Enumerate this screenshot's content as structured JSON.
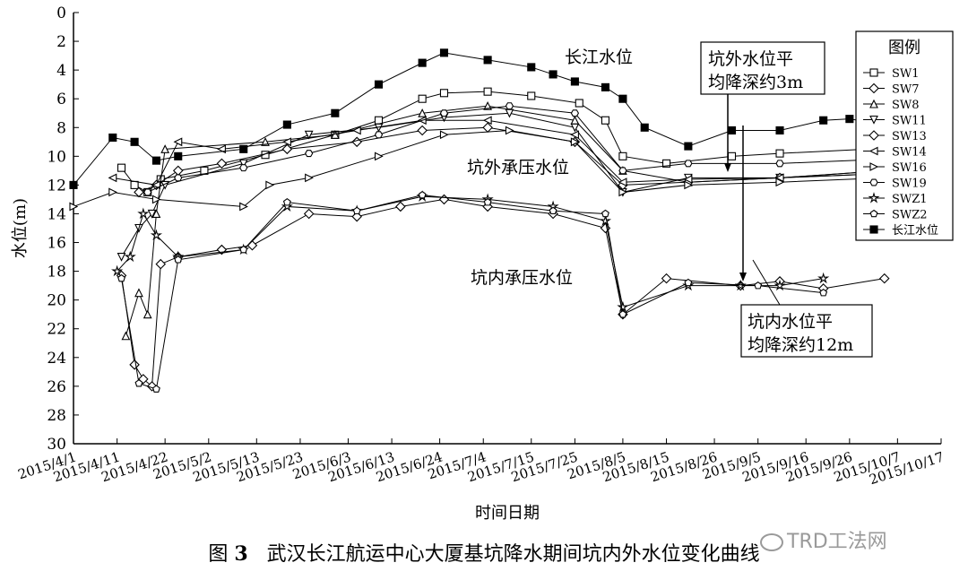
{
  "chart_data": {
    "type": "line",
    "ylabel": "水位(m)",
    "xlabel": "时间日期",
    "y_axis": {
      "min": 0,
      "max": 30,
      "inverted": true,
      "ticks": [
        0,
        2,
        4,
        6,
        8,
        10,
        12,
        14,
        16,
        18,
        20,
        22,
        24,
        26,
        28,
        30
      ]
    },
    "x_axis": {
      "min": "2015/4/1",
      "max": "2015/10/17",
      "tick_labels": [
        "2015/4/1",
        "2015/4/11",
        "2015/4/22",
        "2015/5/2",
        "2015/5/13",
        "2015/5/23",
        "2015/6/3",
        "2015/6/13",
        "2015/6/24",
        "2015/7/4",
        "2015/7/15",
        "2015/7/25",
        "2015/8/5",
        "2015/8/15",
        "2015/8/26",
        "2015/9/5",
        "2015/9/16",
        "2015/9/26",
        "2015/10/7",
        "2015/10/17"
      ]
    },
    "legend_title": "图例",
    "legend_position": "right",
    "annotations": [
      {
        "text": "长江水位"
      },
      {
        "text": "坑外承压水位"
      },
      {
        "text": "坑内承压水位"
      },
      {
        "text": "坑外水位平均降深约3m",
        "lines": [
          "坑外水位平",
          "均降深约3m"
        ]
      },
      {
        "text": "坑内水位平均降深约12m",
        "lines": [
          "坑内水位平",
          "均降深约12m"
        ]
      }
    ],
    "series": [
      {
        "name": "SW1",
        "marker": "square",
        "x": [
          "2015/4/12",
          "2015/4/15",
          "2015/4/18",
          "2015/4/21",
          "2015/5/1",
          "2015/5/15",
          "2015/5/31",
          "2015/6/10",
          "2015/6/20",
          "2015/6/25",
          "2015/7/5",
          "2015/7/15",
          "2015/7/26",
          "2015/8/1",
          "2015/8/5",
          "2015/8/15",
          "2015/8/30",
          "2015/9/10",
          "2015/9/30",
          "2015/10/4"
        ],
        "y": [
          10.8,
          12,
          12.5,
          11.6,
          11,
          9.9,
          8.5,
          7.5,
          6,
          5.6,
          5.5,
          5.8,
          6.3,
          7.5,
          10,
          10.5,
          10,
          9.8,
          9.5,
          9.3
        ]
      },
      {
        "name": "SW7",
        "marker": "diamond",
        "x": [
          "2015/4/12",
          "2015/4/15",
          "2015/4/17",
          "2015/4/19",
          "2015/4/21",
          "2015/4/25",
          "2015/5/5",
          "2015/5/12",
          "2015/5/25",
          "2015/6/5",
          "2015/6/15",
          "2015/6/25",
          "2015/7/5",
          "2015/7/20",
          "2015/8/1",
          "2015/8/5",
          "2015/8/15",
          "2015/9/1",
          "2015/9/10",
          "2015/9/20",
          "2015/10/4"
        ],
        "y": [
          18.3,
          24.5,
          25.5,
          26,
          17.5,
          17,
          16.5,
          16.2,
          14,
          14.2,
          13.5,
          13,
          13.5,
          14,
          15,
          21,
          18.5,
          19,
          18.7,
          19.2,
          18.5
        ]
      },
      {
        "name": "SW8",
        "marker": "triangle-up",
        "x": [
          "2015/4/13",
          "2015/4/16",
          "2015/4/18",
          "2015/4/20",
          "2015/4/22",
          "2015/5/15",
          "2015/5/31",
          "2015/6/20",
          "2015/7/5",
          "2015/7/25",
          "2015/8/5",
          "2015/8/20",
          "2015/9/10",
          "2015/10/4"
        ],
        "y": [
          22.5,
          19.5,
          21,
          14,
          9.5,
          9,
          8.5,
          7,
          6.5,
          7.5,
          11,
          11.8,
          11.5,
          11.2
        ]
      },
      {
        "name": "SW11",
        "marker": "triangle-down",
        "x": [
          "2015/4/12",
          "2015/4/16",
          "2015/4/19",
          "2015/4/22",
          "2015/5/10",
          "2015/5/25",
          "2015/6/10",
          "2015/6/25",
          "2015/7/10",
          "2015/7/25",
          "2015/8/5",
          "2015/8/20",
          "2015/9/10",
          "2015/10/4"
        ],
        "y": [
          17,
          15,
          14,
          12,
          10.5,
          8.5,
          8,
          7.3,
          7,
          8,
          12.5,
          11.5,
          11.5,
          11
        ]
      },
      {
        "name": "SW13",
        "marker": "diamond",
        "x": [
          "2015/4/16",
          "2015/4/20",
          "2015/4/25",
          "2015/5/5",
          "2015/5/20",
          "2015/6/5",
          "2015/6/20",
          "2015/7/5",
          "2015/7/25",
          "2015/8/5",
          "2015/8/20",
          "2015/9/10",
          "2015/10/4"
        ],
        "y": [
          12.5,
          12,
          11,
          10.5,
          9.5,
          9,
          8.2,
          8,
          9,
          12,
          11.8,
          11.5,
          11
        ]
      },
      {
        "name": "SW14",
        "marker": "triangle-left",
        "x": [
          "2015/4/10",
          "2015/4/20",
          "2015/4/25",
          "2015/5/5",
          "2015/5/20",
          "2015/6/5",
          "2015/6/20",
          "2015/7/5",
          "2015/7/25",
          "2015/8/5",
          "2015/8/20",
          "2015/9/10",
          "2015/10/4"
        ],
        "y": [
          11.5,
          12,
          9,
          9.5,
          9,
          8.2,
          7.5,
          7.5,
          8.5,
          11.8,
          11.6,
          11.5,
          11.2
        ]
      },
      {
        "name": "SW16",
        "marker": "triangle-right",
        "x": [
          "2015/4/1",
          "2015/4/10",
          "2015/4/20",
          "2015/5/10",
          "2015/5/16",
          "2015/5/25",
          "2015/6/10",
          "2015/6/25",
          "2015/7/10",
          "2015/7/25",
          "2015/8/5",
          "2015/8/20",
          "2015/9/10",
          "2015/10/4"
        ],
        "y": [
          13.5,
          12.5,
          13,
          13.5,
          12,
          11.5,
          10,
          8.5,
          8.2,
          9,
          12.5,
          12,
          11.8,
          11.5
        ]
      },
      {
        "name": "SW19",
        "marker": "hexagon",
        "x": [
          "2015/4/18",
          "2015/4/25",
          "2015/5/10",
          "2015/5/25",
          "2015/6/10",
          "2015/6/25",
          "2015/7/10",
          "2015/7/25",
          "2015/8/5",
          "2015/8/20",
          "2015/9/10",
          "2015/10/4"
        ],
        "y": [
          12.5,
          11.5,
          10.8,
          9.8,
          8.5,
          7,
          6.5,
          7,
          11,
          10.5,
          10.5,
          10.2
        ]
      },
      {
        "name": "SWZ1",
        "marker": "star",
        "x": [
          "2015/4/11",
          "2015/4/14",
          "2015/4/17",
          "2015/4/20",
          "2015/4/25",
          "2015/5/10",
          "2015/5/20",
          "2015/6/5",
          "2015/6/20",
          "2015/7/5",
          "2015/7/20",
          "2015/8/1",
          "2015/8/5",
          "2015/8/20",
          "2015/9/1",
          "2015/9/10",
          "2015/9/20"
        ],
        "y": [
          18,
          17,
          14,
          15.5,
          17,
          16.5,
          13.5,
          13.8,
          12.8,
          13,
          13.5,
          14.5,
          20.5,
          19,
          19,
          19,
          18.5
        ]
      },
      {
        "name": "SWZ2",
        "marker": "pentagon",
        "x": [
          "2015/4/12",
          "2015/4/16",
          "2015/4/20",
          "2015/4/25",
          "2015/5/10",
          "2015/5/20",
          "2015/6/5",
          "2015/6/20",
          "2015/7/5",
          "2015/7/20",
          "2015/8/1",
          "2015/8/5",
          "2015/8/20",
          "2015/9/5",
          "2015/9/20"
        ],
        "y": [
          18.5,
          25.8,
          26.2,
          17.2,
          16.5,
          13.2,
          13.8,
          12.7,
          13.2,
          13.8,
          14,
          21,
          18.8,
          19,
          19.5
        ]
      },
      {
        "name": "长江水位",
        "marker": "filled-square",
        "x": [
          "2015/4/1",
          "2015/4/10",
          "2015/4/15",
          "2015/4/20",
          "2015/4/25",
          "2015/5/10",
          "2015/5/20",
          "2015/5/31",
          "2015/6/10",
          "2015/6/20",
          "2015/6/25",
          "2015/7/5",
          "2015/7/15",
          "2015/7/20",
          "2015/7/25",
          "2015/8/1",
          "2015/8/5",
          "2015/8/10",
          "2015/8/20",
          "2015/8/30",
          "2015/9/10",
          "2015/9/20",
          "2015/9/26",
          "2015/10/4"
        ],
        "y": [
          12,
          8.7,
          9,
          10.3,
          10,
          9.5,
          7.8,
          7,
          5,
          3.5,
          2.8,
          3.3,
          3.8,
          4.3,
          4.8,
          5.2,
          6,
          8,
          9.3,
          8.2,
          8.2,
          7.5,
          7.4,
          7.8
        ]
      }
    ]
  },
  "caption": {
    "label": "图",
    "num": "3",
    "text": "武汉长江航运中心大厦基坑降水期间坑内外水位变化曲线"
  },
  "watermark": "TRD工法网"
}
